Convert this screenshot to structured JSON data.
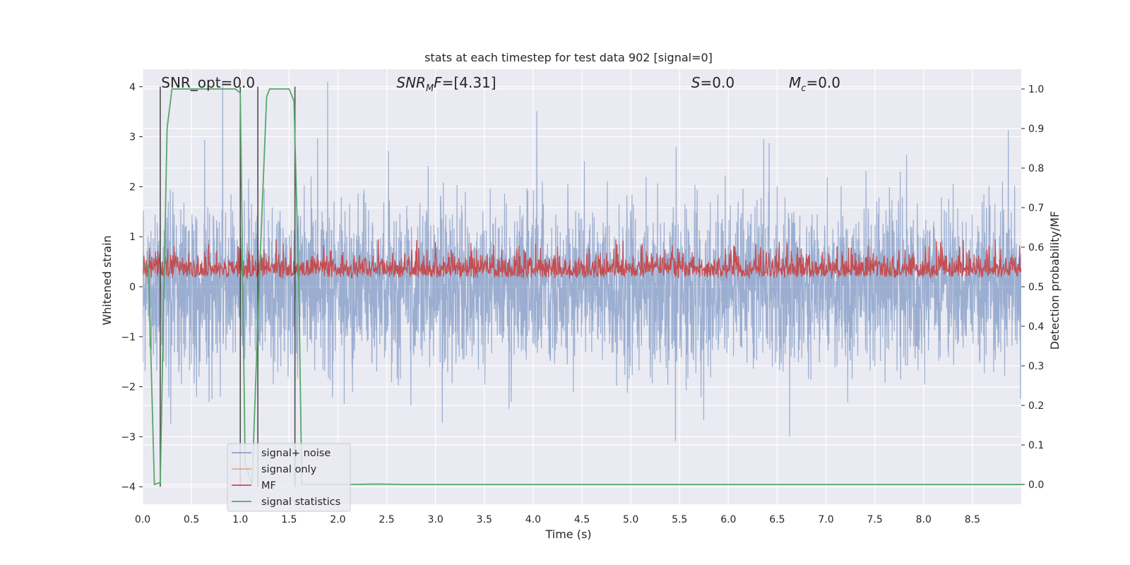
{
  "chart_data": {
    "type": "line",
    "title": "stats at each timestep for test data 902 [signal=0]",
    "xlabel": "Time (s)",
    "ylabel_left": "Whitened strain",
    "ylabel_right": "Detection probability/MF",
    "xlim": [
      0.0,
      9.0
    ],
    "ylim_left": [
      -4.35,
      4.35
    ],
    "ylim_right": [
      -0.05,
      1.05
    ],
    "x_ticks": [
      "0.0",
      "0.5",
      "1.0",
      "1.5",
      "2.0",
      "2.5",
      "3.0",
      "3.5",
      "4.0",
      "4.5",
      "5.0",
      "5.5",
      "6.0",
      "6.5",
      "7.0",
      "7.5",
      "8.0",
      "8.5"
    ],
    "y_ticks_left": [
      "−4",
      "−3",
      "−2",
      "−1",
      "0",
      "1",
      "2",
      "3",
      "4"
    ],
    "y_ticks_right": [
      "0.0",
      "0.1",
      "0.2",
      "0.3",
      "0.4",
      "0.5",
      "0.6",
      "0.7",
      "0.8",
      "0.9",
      "1.0"
    ],
    "grid": true,
    "legend_position": "lower-left",
    "annotations": [
      {
        "prefix": "SNR_opt",
        "sub": "",
        "value": "=0.0",
        "italic": false,
        "x": 0.19
      },
      {
        "prefix": "SNR",
        "sub": "M",
        "value": "F=[4.31]",
        "italic": true,
        "x": 2.6
      },
      {
        "prefix": "S",
        "sub": "",
        "value": "=0.0",
        "italic": true,
        "x": 5.62
      },
      {
        "prefix": "M",
        "sub": "c",
        "value": "=0.0",
        "italic": true,
        "x": 6.62
      }
    ],
    "series": [
      {
        "name": "signal+ noise",
        "color": "#4c72b0",
        "axis": "left",
        "description": "whitened noise, approx. std 0.8, peaks up to about ±4"
      },
      {
        "name": "signal only",
        "color": "#dd8452",
        "axis": "left",
        "values": []
      },
      {
        "name": "MF",
        "color": "#c44e52",
        "axis": "right",
        "description": "matched-filter trace, approx. range 0.50 to 0.60"
      },
      {
        "name": "signal statistics",
        "color": "#55a868",
        "axis": "right",
        "x": [
          0.0,
          0.06,
          0.12,
          0.18,
          0.25,
          0.3,
          0.5,
          0.75,
          0.95,
          1.0,
          1.05,
          1.12,
          1.2,
          1.27,
          1.3,
          1.5,
          1.55,
          1.6,
          1.63,
          1.7,
          1.9,
          2.1,
          2.4,
          2.7,
          3.0,
          4.0,
          5.0,
          6.0,
          7.0,
          8.0,
          9.0
        ],
        "values": [
          0.56,
          0.55,
          0.0,
          0.005,
          0.9,
          1.0,
          1.0,
          1.0,
          1.0,
          0.99,
          0.05,
          0.0,
          0.55,
          0.98,
          1.0,
          1.0,
          0.97,
          0.5,
          0.0,
          0.0,
          0.0,
          0.0,
          0.001,
          0.0,
          0.0,
          0.0,
          0.0,
          0.0,
          0.0,
          0.0,
          0.0
        ]
      },
      {
        "name": "",
        "color": "#333333",
        "axis": "left",
        "description": "vertical markers",
        "x": [
          0.18,
          1.0,
          1.18,
          1.56
        ]
      }
    ]
  }
}
